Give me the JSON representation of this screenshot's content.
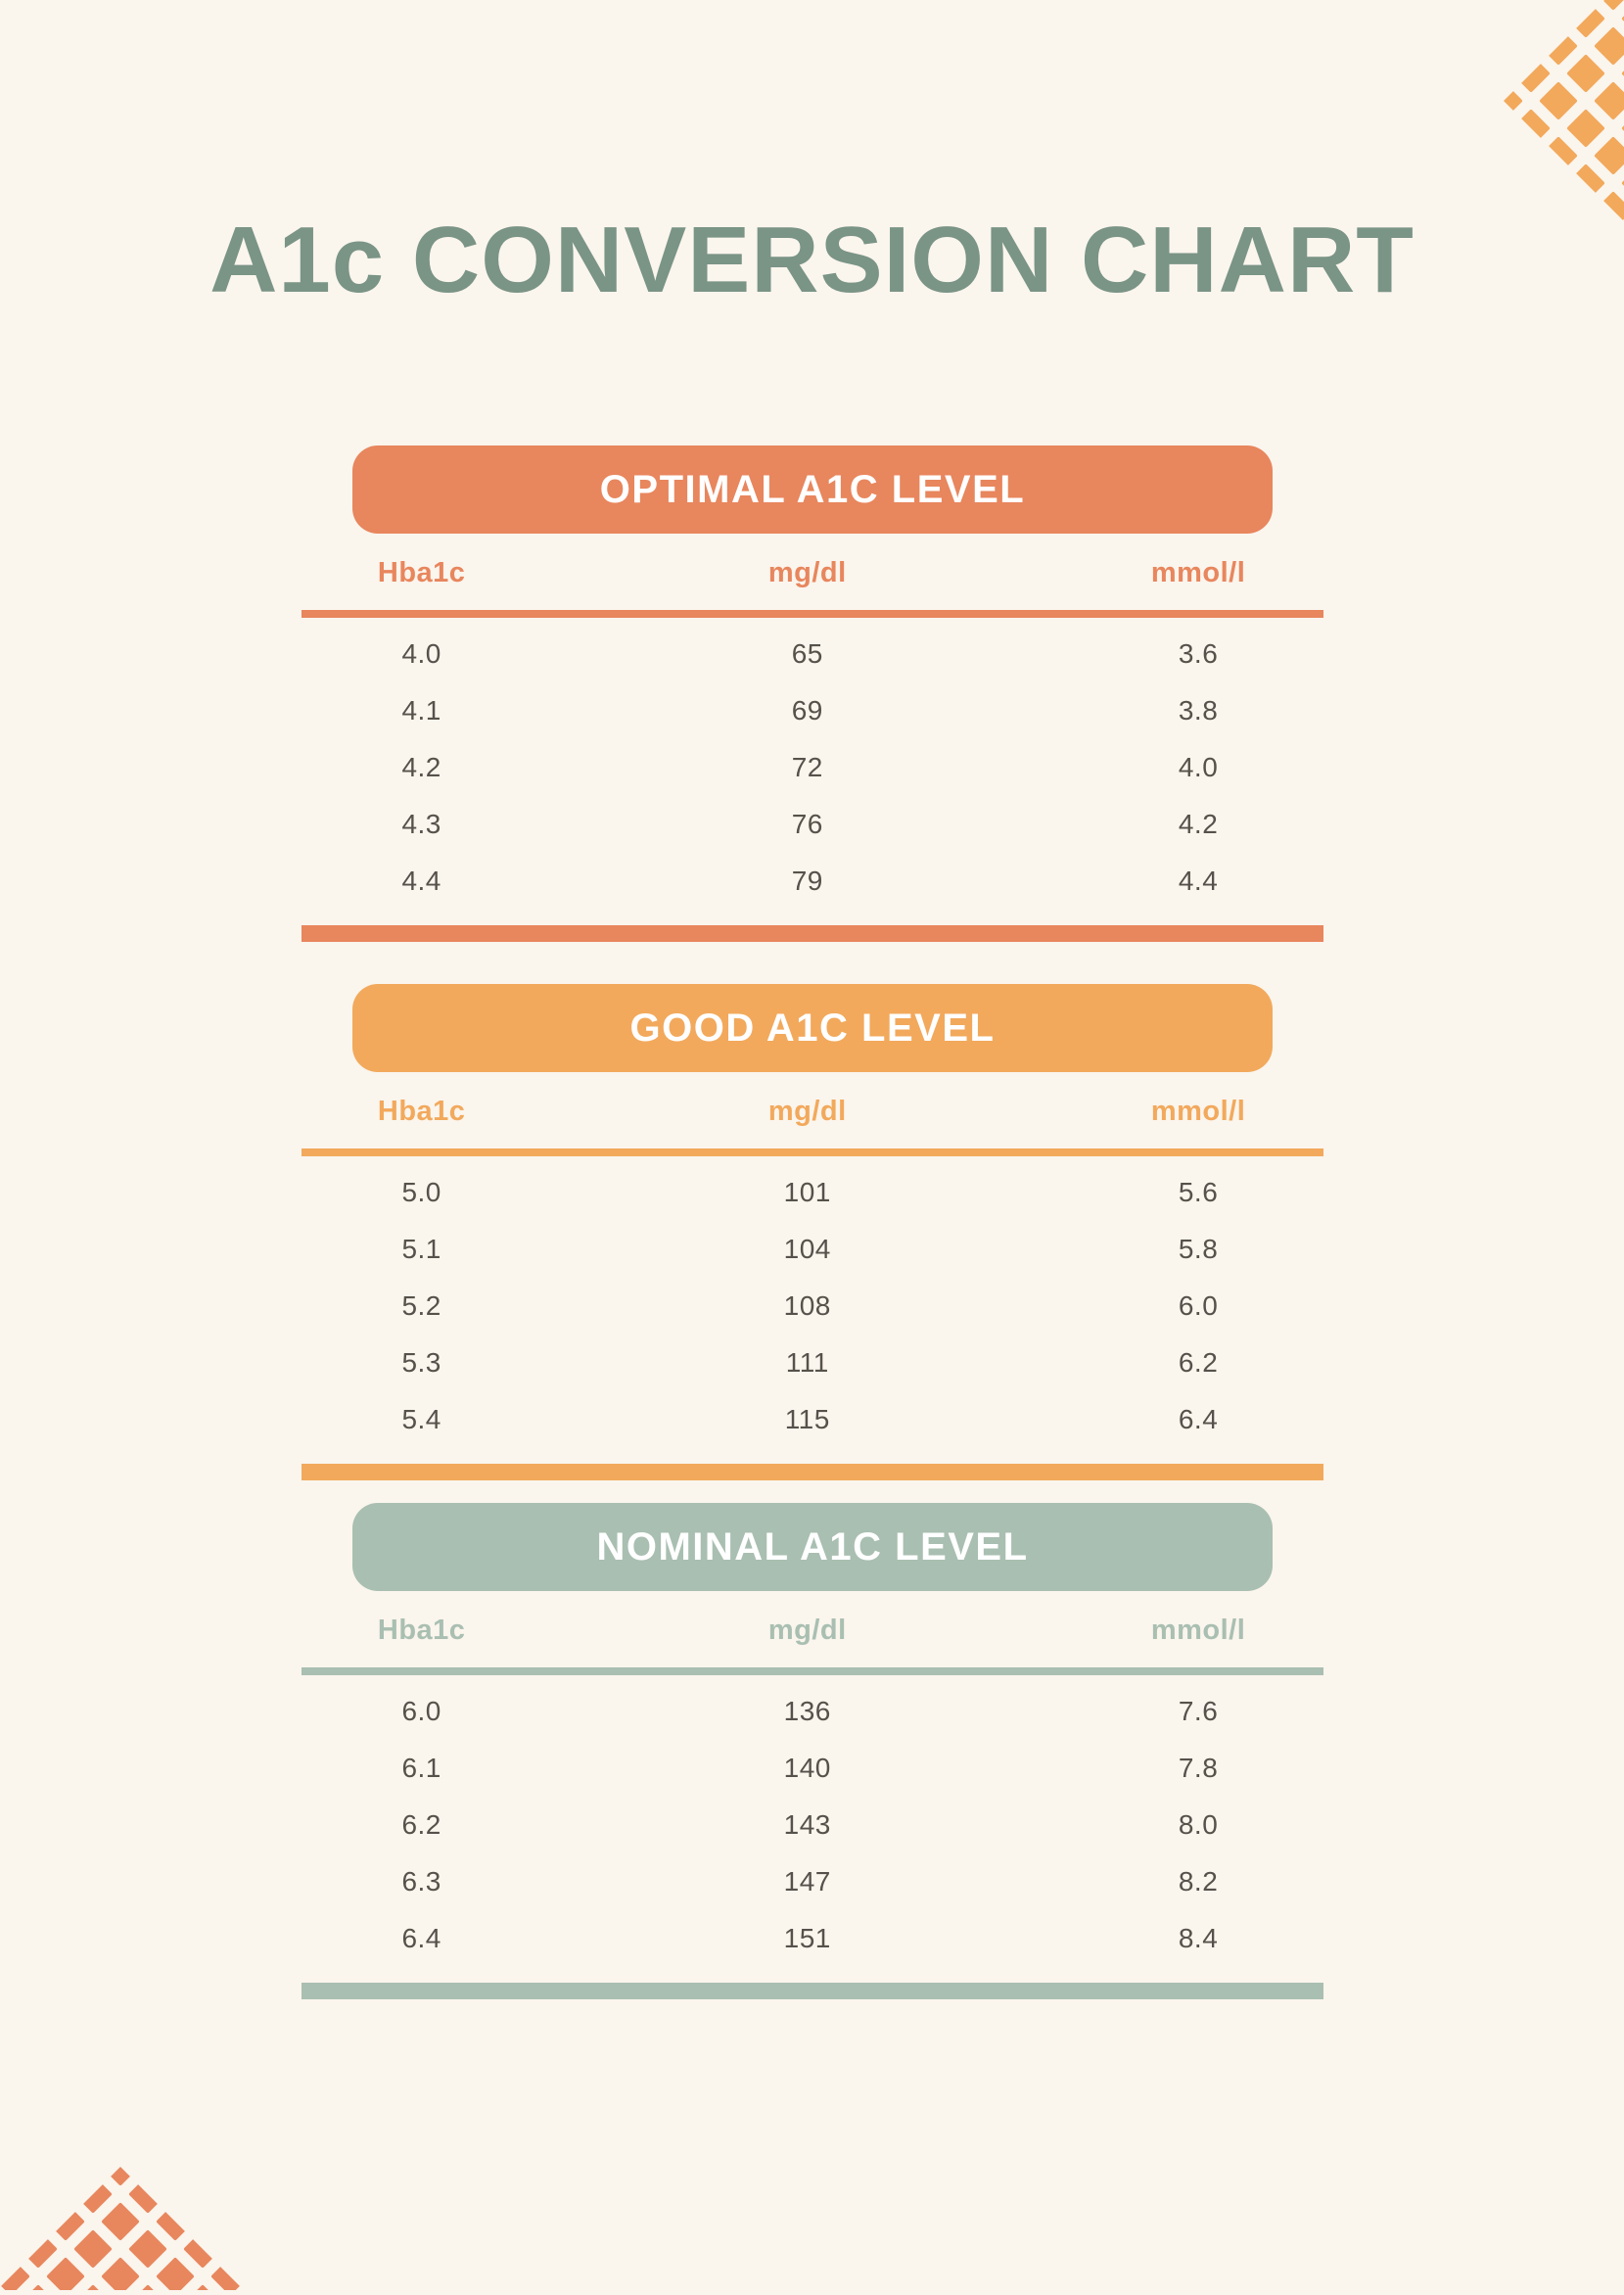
{
  "page": {
    "title": "A1c CONVERSION CHART",
    "background_color": "#FAF5ED",
    "title_color": "#7A9486"
  },
  "columns": [
    "Hba1c",
    "mg/dl",
    "mmol/l"
  ],
  "sections": [
    {
      "label": "OPTIMAL A1C LEVEL",
      "color": "#E8865D",
      "rows": [
        [
          "4.0",
          "65",
          "3.6"
        ],
        [
          "4.1",
          "69",
          "3.8"
        ],
        [
          "4.2",
          "72",
          "4.0"
        ],
        [
          "4.3",
          "76",
          "4.2"
        ],
        [
          "4.4",
          "79",
          "4.4"
        ]
      ]
    },
    {
      "label": "GOOD A1C LEVEL",
      "color": "#F2A95C",
      "rows": [
        [
          "5.0",
          "101",
          "5.6"
        ],
        [
          "5.1",
          "104",
          "5.8"
        ],
        [
          "5.2",
          "108",
          "6.0"
        ],
        [
          "5.3",
          "111",
          "6.2"
        ],
        [
          "5.4",
          "115",
          "6.4"
        ]
      ]
    },
    {
      "label": "NOMINAL A1C LEVEL",
      "color": "#A9BFB1",
      "rows": [
        [
          "6.0",
          "136",
          "7.6"
        ],
        [
          "6.1",
          "140",
          "7.8"
        ],
        [
          "6.2",
          "143",
          "8.0"
        ],
        [
          "6.3",
          "147",
          "8.2"
        ],
        [
          "6.4",
          "151",
          "8.4"
        ]
      ]
    }
  ],
  "decor": {
    "top_right_diamond_color": "#F2A95C",
    "bottom_left_diamond_color": "#E8875E"
  },
  "chart_data": [
    {
      "type": "table",
      "title": "OPTIMAL A1C LEVEL",
      "columns": [
        "Hba1c",
        "mg/dl",
        "mmol/l"
      ],
      "rows": [
        [
          4.0,
          65,
          3.6
        ],
        [
          4.1,
          69,
          3.8
        ],
        [
          4.2,
          72,
          4.0
        ],
        [
          4.3,
          76,
          4.2
        ],
        [
          4.4,
          79,
          4.4
        ]
      ]
    },
    {
      "type": "table",
      "title": "GOOD A1C LEVEL",
      "columns": [
        "Hba1c",
        "mg/dl",
        "mmol/l"
      ],
      "rows": [
        [
          5.0,
          101,
          5.6
        ],
        [
          5.1,
          104,
          5.8
        ],
        [
          5.2,
          108,
          6.0
        ],
        [
          5.3,
          111,
          6.2
        ],
        [
          5.4,
          115,
          6.4
        ]
      ]
    },
    {
      "type": "table",
      "title": "NOMINAL A1C LEVEL",
      "columns": [
        "Hba1c",
        "mg/dl",
        "mmol/l"
      ],
      "rows": [
        [
          6.0,
          136,
          7.6
        ],
        [
          6.1,
          140,
          7.8
        ],
        [
          6.2,
          143,
          8.0
        ],
        [
          6.3,
          147,
          8.2
        ],
        [
          6.4,
          151,
          8.4
        ]
      ]
    }
  ]
}
